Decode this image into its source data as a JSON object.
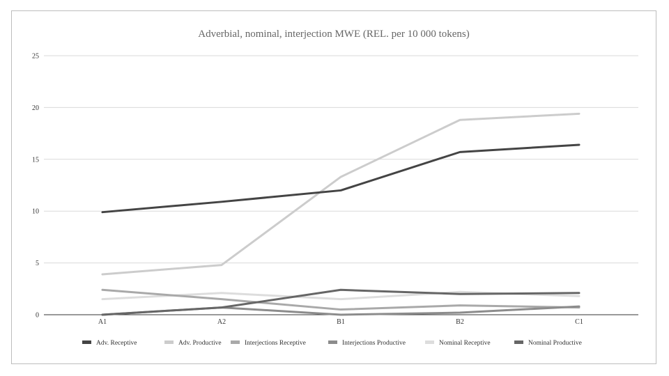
{
  "chart_data": {
    "type": "line",
    "title": "Adverbial, nominal, interjection MWE (REL. per 10 000 tokens)",
    "xlabel": "",
    "ylabel": "",
    "categories": [
      "A1",
      "A2",
      "B1",
      "B2",
      "C1"
    ],
    "ylim": [
      0,
      25
    ],
    "yticks": [
      0,
      5,
      10,
      15,
      20,
      25
    ],
    "grid": true,
    "legend_position": "bottom",
    "series": [
      {
        "name": "Adv. Receptive",
        "color": "#444444",
        "values": [
          9.9,
          10.9,
          12.0,
          15.7,
          16.4
        ]
      },
      {
        "name": "Adv. Productive",
        "color": "#cccccc",
        "values": [
          3.9,
          4.8,
          13.3,
          18.8,
          19.4
        ]
      },
      {
        "name": "Interjections Receptive",
        "color": "#a9a9a9",
        "values": [
          2.4,
          1.5,
          0.5,
          0.9,
          0.7
        ]
      },
      {
        "name": "Interjections Productive",
        "color": "#8c8c8c",
        "values": [
          0.0,
          0.7,
          0.0,
          0.2,
          0.8
        ]
      },
      {
        "name": "Nominal Receptive",
        "color": "#dddddd",
        "values": [
          1.5,
          2.1,
          1.5,
          2.2,
          1.8
        ]
      },
      {
        "name": "Nominal Productive",
        "color": "#666666",
        "values": [
          0.0,
          0.7,
          2.4,
          2.0,
          2.1
        ]
      }
    ]
  }
}
